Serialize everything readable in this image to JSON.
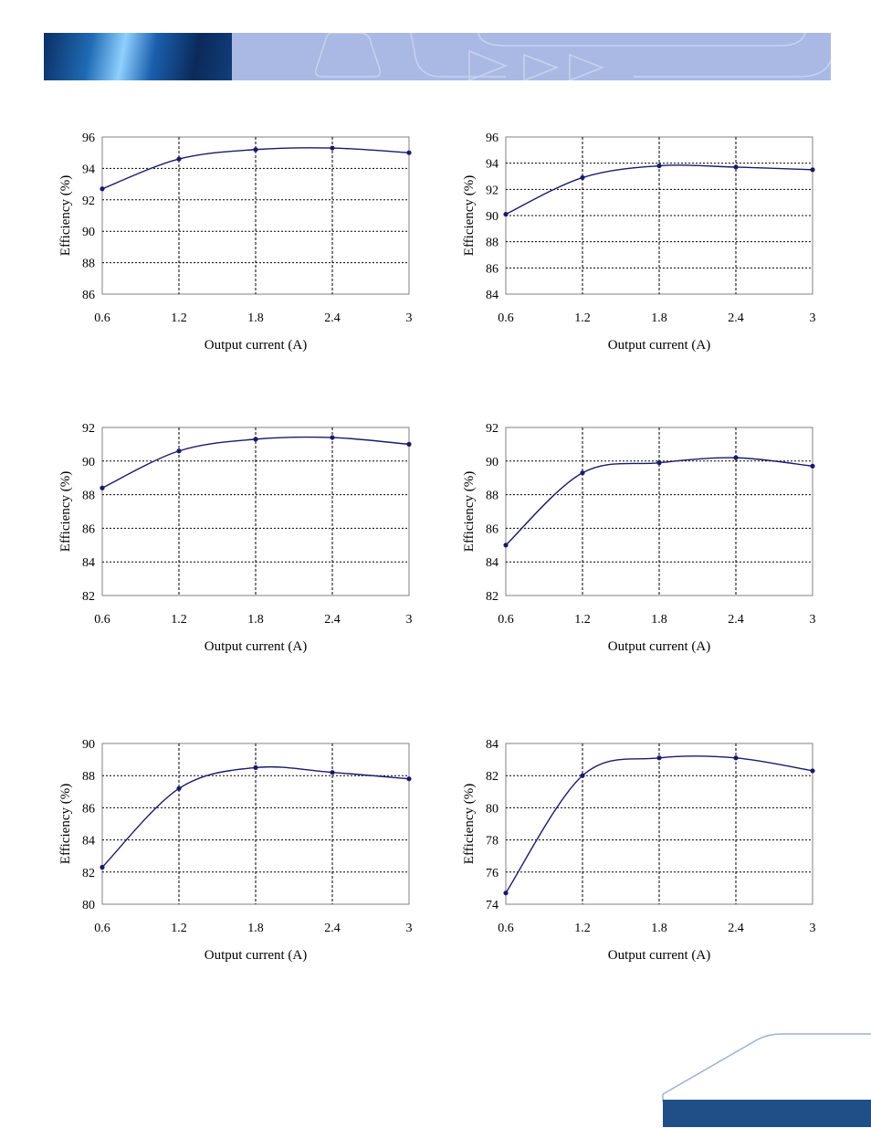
{
  "header": {
    "accent": "#aab9e4",
    "photo": "blue-light-streaks-image"
  },
  "footer": {
    "accent": "#1f4f86",
    "shape": "slanted-corner-band"
  },
  "colors": {
    "line": "#1a1a6b",
    "marker": "#1a1a6b",
    "grid": "#000000",
    "frame": "#808080"
  },
  "chart_data": [
    {
      "type": "line",
      "xlabel": "Output current (A)",
      "ylabel": "Efficiency (%)",
      "xticks": [
        "0.6",
        "1.2",
        "1.8",
        "2.4",
        "3"
      ],
      "yticks": [
        "86",
        "88",
        "90",
        "92",
        "94",
        "96"
      ],
      "xlim": [
        0.6,
        3
      ],
      "ylim": [
        86,
        96
      ],
      "grid": true,
      "series": [
        {
          "x": [
            0.6,
            1.2,
            1.8,
            2.4,
            3.0
          ],
          "values": [
            92.7,
            94.6,
            95.2,
            95.3,
            95.0
          ]
        }
      ]
    },
    {
      "type": "line",
      "xlabel": "Output current (A)",
      "ylabel": "Efficiency (%)",
      "xticks": [
        "0.6",
        "1.2",
        "1.8",
        "2.4",
        "3"
      ],
      "yticks": [
        "84",
        "86",
        "88",
        "90",
        "92",
        "94",
        "96"
      ],
      "xlim": [
        0.6,
        3
      ],
      "ylim": [
        84,
        96
      ],
      "grid": true,
      "series": [
        {
          "x": [
            0.6,
            1.2,
            1.8,
            2.4,
            3.0
          ],
          "values": [
            90.1,
            92.9,
            93.8,
            93.7,
            93.5
          ]
        }
      ]
    },
    {
      "type": "line",
      "xlabel": "Output current (A)",
      "ylabel": "Efficiency (%)",
      "xticks": [
        "0.6",
        "1.2",
        "1.8",
        "2.4",
        "3"
      ],
      "yticks": [
        "82",
        "84",
        "86",
        "88",
        "90",
        "92"
      ],
      "xlim": [
        0.6,
        3
      ],
      "ylim": [
        82,
        92
      ],
      "grid": true,
      "series": [
        {
          "x": [
            0.6,
            1.2,
            1.8,
            2.4,
            3.0
          ],
          "values": [
            88.4,
            90.6,
            91.3,
            91.4,
            91.0
          ]
        }
      ]
    },
    {
      "type": "line",
      "xlabel": "Output current (A)",
      "ylabel": "Efficiency (%)",
      "xticks": [
        "0.6",
        "1.2",
        "1.8",
        "2.4",
        "3"
      ],
      "yticks": [
        "82",
        "84",
        "86",
        "88",
        "90",
        "92"
      ],
      "xlim": [
        0.6,
        3
      ],
      "ylim": [
        82,
        92
      ],
      "grid": true,
      "series": [
        {
          "x": [
            0.6,
            1.2,
            1.8,
            2.4,
            3.0
          ],
          "values": [
            85.0,
            89.3,
            89.9,
            90.2,
            89.7
          ]
        }
      ]
    },
    {
      "type": "line",
      "xlabel": "Output current (A)",
      "ylabel": "Efficiency (%)",
      "xticks": [
        "0.6",
        "1.2",
        "1.8",
        "2.4",
        "3"
      ],
      "yticks": [
        "80",
        "82",
        "84",
        "86",
        "88",
        "90"
      ],
      "xlim": [
        0.6,
        3
      ],
      "ylim": [
        80,
        90
      ],
      "grid": true,
      "series": [
        {
          "x": [
            0.6,
            1.2,
            1.8,
            2.4,
            3.0
          ],
          "values": [
            82.3,
            87.2,
            88.5,
            88.2,
            87.8
          ]
        }
      ]
    },
    {
      "type": "line",
      "xlabel": "Output current (A)",
      "ylabel": "Efficiency (%)",
      "xticks": [
        "0.6",
        "1.2",
        "1.8",
        "2.4",
        "3"
      ],
      "yticks": [
        "74",
        "76",
        "78",
        "80",
        "82",
        "84"
      ],
      "xlim": [
        0.6,
        3
      ],
      "ylim": [
        74,
        84
      ],
      "grid": true,
      "series": [
        {
          "x": [
            0.6,
            1.2,
            1.8,
            2.4,
            3.0
          ],
          "values": [
            74.7,
            82.0,
            83.1,
            83.1,
            82.3
          ]
        }
      ]
    }
  ]
}
